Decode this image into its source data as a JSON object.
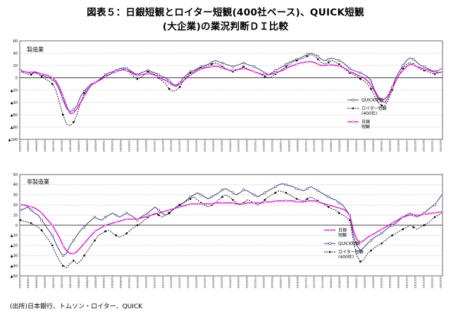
{
  "title_line1": "図表５：日銀短観とロイター短観(400社ベース)、QUICK短観",
  "title_line2": "(大企業)の業況判断ＤＩ比較",
  "source": "(出所)日本銀行、トムソン・ロイター、QUICK",
  "chart_data": [
    {
      "type": "line",
      "panel_label": "製造業",
      "ylim": [
        -100,
        60
      ],
      "yticks": [
        60,
        40,
        20,
        0,
        -20,
        -40,
        -60,
        -80,
        -100
      ],
      "ytick_labels": [
        "60",
        "40",
        "20",
        "0",
        "▲20",
        "▲40",
        "▲60",
        "▲80",
        "▲100"
      ],
      "x_range": [
        "2005/09",
        "2022/06"
      ],
      "x_tick_interval_months": 4,
      "legend": [
        {
          "key": "quick",
          "lines": [
            "QUICK短観"
          ]
        },
        {
          "key": "reuters",
          "lines": [
            "ロイター短観",
            "(400社)"
          ]
        },
        {
          "key": "boj",
          "lines": [
            "日銀",
            "短観"
          ]
        }
      ],
      "series": [
        {
          "key": "quick",
          "values": [
            12,
            10,
            9,
            8,
            10,
            8,
            5,
            2,
            0,
            -3,
            -8,
            -20,
            -35,
            -50,
            -55,
            -52,
            -45,
            -30,
            -22,
            -15,
            -10,
            -8,
            -5,
            0,
            5,
            8,
            10,
            12,
            15,
            16,
            15,
            12,
            8,
            5,
            8,
            10,
            12,
            10,
            8,
            5,
            2,
            0,
            -5,
            -10,
            -12,
            -8,
            0,
            5,
            10,
            12,
            15,
            18,
            20,
            22,
            25,
            28,
            26,
            24,
            22,
            20,
            18,
            20,
            22,
            24,
            22,
            20,
            18,
            15,
            12,
            8,
            5,
            8,
            12,
            15,
            18,
            22,
            25,
            28,
            30,
            32,
            35,
            38,
            40,
            38,
            35,
            30,
            28,
            30,
            32,
            30,
            28,
            25,
            20,
            15,
            12,
            10,
            8,
            5,
            2,
            -5,
            -20,
            -30,
            -38,
            -40,
            -30,
            -15,
            0,
            10,
            20,
            28,
            32,
            30,
            25,
            20,
            18,
            15,
            12,
            10,
            12,
            15
          ]
        },
        {
          "key": "reuters",
          "values": [
            10,
            8,
            6,
            5,
            8,
            6,
            2,
            -2,
            -5,
            -10,
            -20,
            -40,
            -60,
            -75,
            -78,
            -72,
            -60,
            -40,
            -25,
            -18,
            -12,
            -8,
            -4,
            0,
            3,
            5,
            8,
            10,
            12,
            14,
            12,
            8,
            2,
            -2,
            0,
            5,
            10,
            8,
            5,
            0,
            -5,
            -10,
            -18,
            -22,
            -20,
            -15,
            -5,
            2,
            8,
            10,
            14,
            16,
            18,
            20,
            22,
            24,
            22,
            18,
            15,
            12,
            10,
            12,
            15,
            18,
            15,
            12,
            10,
            8,
            5,
            2,
            0,
            2,
            6,
            10,
            14,
            18,
            22,
            26,
            28,
            30,
            32,
            35,
            38,
            35,
            30,
            25,
            22,
            25,
            28,
            25,
            22,
            18,
            12,
            8,
            5,
            2,
            -2,
            -5,
            -10,
            -18,
            -30,
            -40,
            -45,
            -45,
            -35,
            -20,
            -5,
            5,
            15,
            22,
            25,
            22,
            18,
            14,
            12,
            10,
            8,
            6,
            8,
            10
          ]
        },
        {
          "key": "boj",
          "values": [
            10,
            10,
            9,
            9,
            8,
            8,
            6,
            5,
            3,
            0,
            -5,
            -15,
            -30,
            -45,
            -58,
            -57,
            -50,
            -40,
            -30,
            -20,
            -12,
            -8,
            -5,
            -2,
            2,
            5,
            8,
            10,
            12,
            13,
            12,
            10,
            6,
            4,
            5,
            6,
            7,
            6,
            4,
            2,
            -2,
            -4,
            -8,
            -12,
            -14,
            -10,
            -5,
            0,
            5,
            8,
            12,
            14,
            16,
            17,
            18,
            19,
            18,
            16,
            14,
            12,
            12,
            13,
            14,
            15,
            14,
            12,
            10,
            8,
            6,
            5,
            5,
            6,
            8,
            10,
            12,
            15,
            18,
            20,
            22,
            24,
            25,
            26,
            26,
            25,
            22,
            20,
            20,
            21,
            21,
            20,
            19,
            17,
            14,
            10,
            8,
            5,
            2,
            0,
            -5,
            -12,
            -22,
            -34,
            -37,
            -34,
            -27,
            -15,
            -5,
            5,
            12,
            18,
            22,
            21,
            18,
            16,
            14,
            13,
            11,
            9,
            9,
            9
          ]
        }
      ]
    },
    {
      "type": "line",
      "panel_label": "非製造業",
      "ylim": [
        -50,
        50
      ],
      "yticks": [
        50,
        40,
        30,
        20,
        10,
        0,
        -10,
        -20,
        -30,
        -40,
        -50
      ],
      "ytick_labels": [
        "50",
        "40",
        "30",
        "20",
        "10",
        "0",
        "▲10",
        "▲20",
        "▲30",
        "▲40",
        "▲50"
      ],
      "x_range": [
        "2005/09",
        "2022/06"
      ],
      "x_tick_interval_months": 4,
      "legend": [
        {
          "key": "boj",
          "lines": [
            "日銀",
            "短観"
          ]
        },
        {
          "key": "quick",
          "lines": [
            "QUICK短観"
          ]
        },
        {
          "key": "reuters",
          "lines": [
            "ロイター短観",
            "(400社)"
          ]
        }
      ],
      "series": [
        {
          "key": "quick",
          "values": [
            15,
            16,
            18,
            15,
            12,
            10,
            5,
            0,
            -5,
            -10,
            -18,
            -25,
            -30,
            -28,
            -20,
            -15,
            -10,
            -5,
            -2,
            2,
            5,
            8,
            6,
            5,
            8,
            10,
            12,
            10,
            8,
            10,
            12,
            10,
            8,
            5,
            8,
            10,
            12,
            15,
            18,
            15,
            12,
            10,
            12,
            15,
            18,
            20,
            22,
            25,
            28,
            30,
            32,
            30,
            28,
            26,
            28,
            30,
            32,
            35,
            36,
            34,
            32,
            30,
            32,
            35,
            34,
            32,
            30,
            28,
            30,
            32,
            34,
            36,
            38,
            40,
            41,
            40,
            39,
            38,
            36,
            35,
            34,
            36,
            38,
            36,
            34,
            32,
            30,
            28,
            26,
            25,
            22,
            20,
            15,
            10,
            -10,
            -20,
            -25,
            -22,
            -18,
            -15,
            -12,
            -10,
            -8,
            -5,
            -2,
            0,
            2,
            5,
            8,
            10,
            12,
            10,
            8,
            10,
            12,
            15,
            18,
            20,
            25,
            30
          ]
        },
        {
          "key": "reuters",
          "values": [
            5,
            4,
            3,
            2,
            0,
            -2,
            -5,
            -10,
            -15,
            -20,
            -28,
            -35,
            -40,
            -42,
            -38,
            -35,
            -38,
            -35,
            -30,
            -25,
            -20,
            -15,
            -10,
            -8,
            -6,
            -5,
            -8,
            -10,
            -12,
            -10,
            -8,
            -5,
            -2,
            0,
            2,
            5,
            8,
            10,
            12,
            10,
            8,
            10,
            12,
            15,
            18,
            20,
            22,
            24,
            26,
            28,
            25,
            22,
            20,
            18,
            20,
            22,
            25,
            28,
            30,
            28,
            25,
            22,
            20,
            22,
            25,
            24,
            22,
            20,
            22,
            25,
            28,
            30,
            32,
            34,
            33,
            32,
            30,
            28,
            26,
            25,
            24,
            26,
            28,
            26,
            24,
            22,
            20,
            18,
            16,
            15,
            12,
            10,
            8,
            5,
            -15,
            -30,
            -36,
            -34,
            -28,
            -25,
            -22,
            -20,
            -18,
            -15,
            -12,
            -10,
            -8,
            -6,
            -4,
            -2,
            0,
            -2,
            -4,
            -2,
            0,
            2,
            5,
            8,
            10,
            12
          ]
        },
        {
          "key": "boj",
          "values": [
            20,
            20,
            19,
            18,
            17,
            15,
            12,
            8,
            4,
            0,
            -6,
            -12,
            -20,
            -25,
            -28,
            -28,
            -26,
            -22,
            -18,
            -14,
            -10,
            -6,
            -4,
            -2,
            0,
            1,
            2,
            3,
            4,
            5,
            6,
            6,
            6,
            6,
            7,
            8,
            9,
            10,
            11,
            12,
            13,
            14,
            15,
            16,
            17,
            18,
            19,
            20,
            21,
            21,
            21,
            21,
            21,
            21,
            21,
            22,
            22,
            22,
            22,
            22,
            22,
            21,
            21,
            21,
            22,
            22,
            22,
            22,
            22,
            23,
            23,
            23,
            24,
            24,
            24,
            24,
            24,
            24,
            23,
            23,
            23,
            24,
            24,
            24,
            23,
            22,
            21,
            20,
            19,
            18,
            17,
            16,
            14,
            10,
            -5,
            -14,
            -17,
            -15,
            -12,
            -10,
            -8,
            -6,
            -4,
            -2,
            0,
            2,
            4,
            6,
            8,
            9,
            10,
            10,
            10,
            10,
            11,
            11,
            12,
            12,
            13,
            13
          ]
        }
      ]
    }
  ]
}
